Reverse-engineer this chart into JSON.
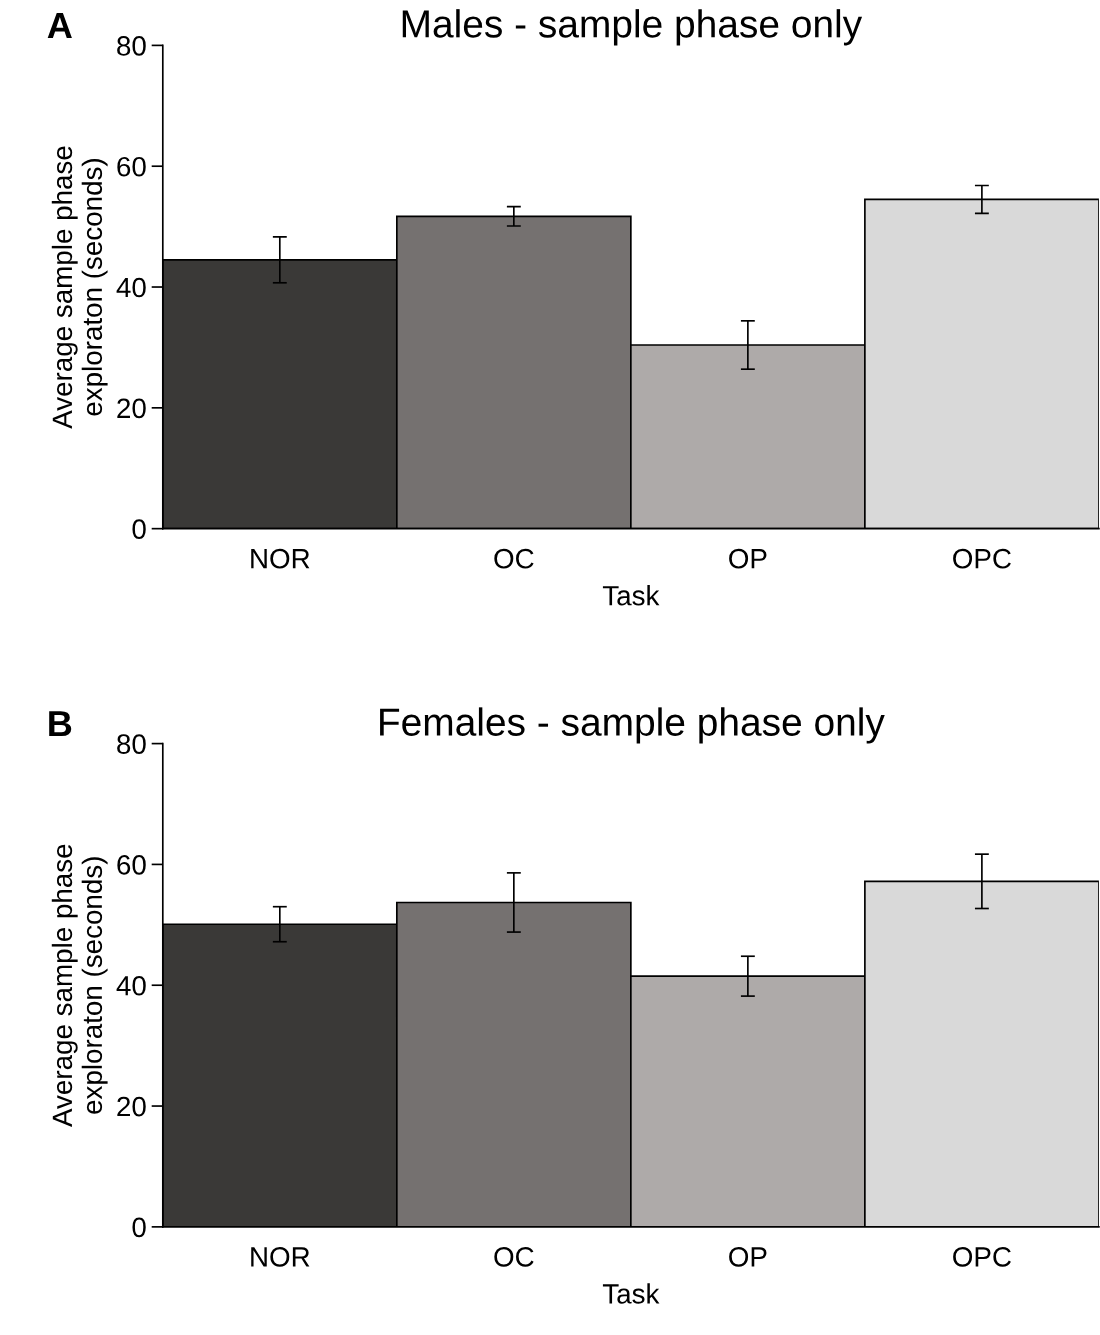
{
  "chart_data": [
    {
      "type": "bar",
      "title": "Males - sample phase only",
      "xlabel": "Task",
      "ylabel": "Average sample phase\nexploraton (seconds)",
      "annotations": [
        "A"
      ],
      "categories": [
        "NOR",
        "OC",
        "OP",
        "OPC"
      ],
      "values": [
        44.5,
        51.7,
        30.4,
        54.5
      ],
      "errors": [
        3.8,
        1.6,
        4.0,
        2.3
      ],
      "colors": [
        "#3a3937",
        "#757170",
        "#aeaaa9",
        "#d9d9d9"
      ],
      "ylim": [
        0,
        80
      ],
      "yticks": [
        0,
        20,
        40,
        60,
        80
      ],
      "grid": false
    },
    {
      "type": "bar",
      "title": "Females - sample phase only",
      "xlabel": "Task",
      "ylabel": "Average sample phase\nexploraton (seconds)",
      "annotations": [
        "B"
      ],
      "categories": [
        "NOR",
        "OC",
        "OP",
        "OPC"
      ],
      "values": [
        50.1,
        53.7,
        41.5,
        57.2
      ],
      "errors": [
        2.9,
        4.9,
        3.3,
        4.5
      ],
      "colors": [
        "#3a3937",
        "#757170",
        "#aeaaa9",
        "#d9d9d9"
      ],
      "ylim": [
        0,
        80
      ],
      "yticks": [
        0,
        20,
        40,
        60,
        80
      ],
      "grid": false
    }
  ]
}
